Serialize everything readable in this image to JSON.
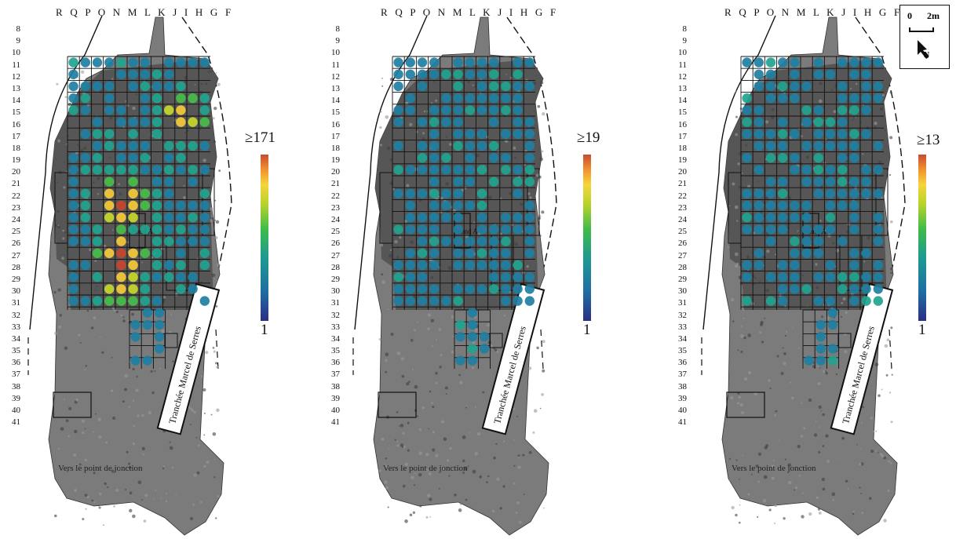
{
  "column_labels": "R Q P O N M L K J I H G F",
  "row_labels": [
    "8",
    "9",
    "10",
    "11",
    "12",
    "13",
    "14",
    "15",
    "16",
    "17",
    "18",
    "19",
    "20",
    "21",
    "22",
    "23",
    "24",
    "25",
    "26",
    "27",
    "28",
    "29",
    "30",
    "31",
    "32",
    "33",
    "34",
    "35",
    "36",
    "37",
    "38",
    "39",
    "40",
    "41"
  ],
  "annotations": {
    "trench": "Tranchée Marcel de Serres",
    "towards": "Vers le point de jonction",
    "sondage": "Sond A"
  },
  "panels": [
    {
      "colorbar_max": "≥171",
      "colorbar_min": "1"
    },
    {
      "colorbar_max": "≥19",
      "colorbar_min": "1"
    },
    {
      "colorbar_max": "≥13",
      "colorbar_min": "1"
    }
  ],
  "scale_bar": {
    "start": "0",
    "end": "2m",
    "north": "N"
  },
  "colors": {
    "low": "#2b2f86",
    "mid_low": "#1f8fa0",
    "mid": "#3fbb4a",
    "mid_high": "#f5d53a",
    "high": "#c64c33",
    "gravel": "#7a7a7a"
  }
}
